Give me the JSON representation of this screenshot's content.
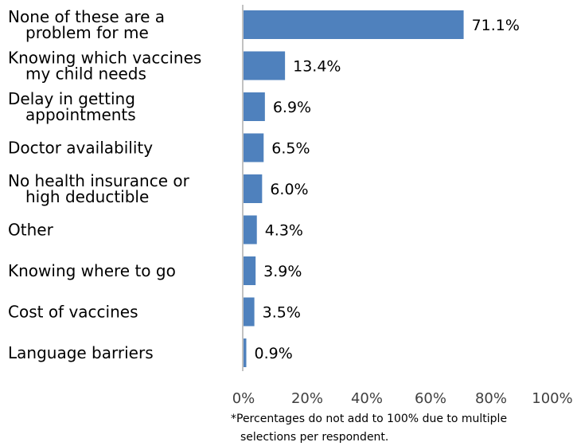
{
  "chart_data": {
    "type": "bar",
    "orientation": "horizontal",
    "categories": [
      [
        "None of these are a",
        "problem for me"
      ],
      [
        "Knowing which vaccines",
        "my child needs"
      ],
      [
        "Delay in getting",
        "appointments"
      ],
      [
        "Doctor availability"
      ],
      [
        "No health insurance or",
        "high deductible"
      ],
      [
        "Other"
      ],
      [
        "Knowing where to go"
      ],
      [
        "Cost of vaccines"
      ],
      [
        "Language barriers"
      ]
    ],
    "values": [
      71.1,
      13.4,
      6.9,
      6.5,
      6.0,
      4.3,
      3.9,
      3.5,
      0.9
    ],
    "data_labels": [
      "71.1%",
      "13.4%",
      "6.9%",
      "6.5%",
      "6.0%",
      "4.3%",
      "3.9%",
      "3.5%",
      "0.9%"
    ],
    "x_ticks": [
      "0%",
      "20%",
      "40%",
      "60%",
      "80%",
      "100%"
    ],
    "xlim": [
      0,
      100
    ],
    "title": "",
    "xlabel": "",
    "ylabel": "",
    "grid": false,
    "bar_color": "#4F81BD",
    "axis_color": "#868686",
    "footnote": [
      "*Percentages do not add to 100% due to multiple",
      "selections per respondent."
    ]
  }
}
